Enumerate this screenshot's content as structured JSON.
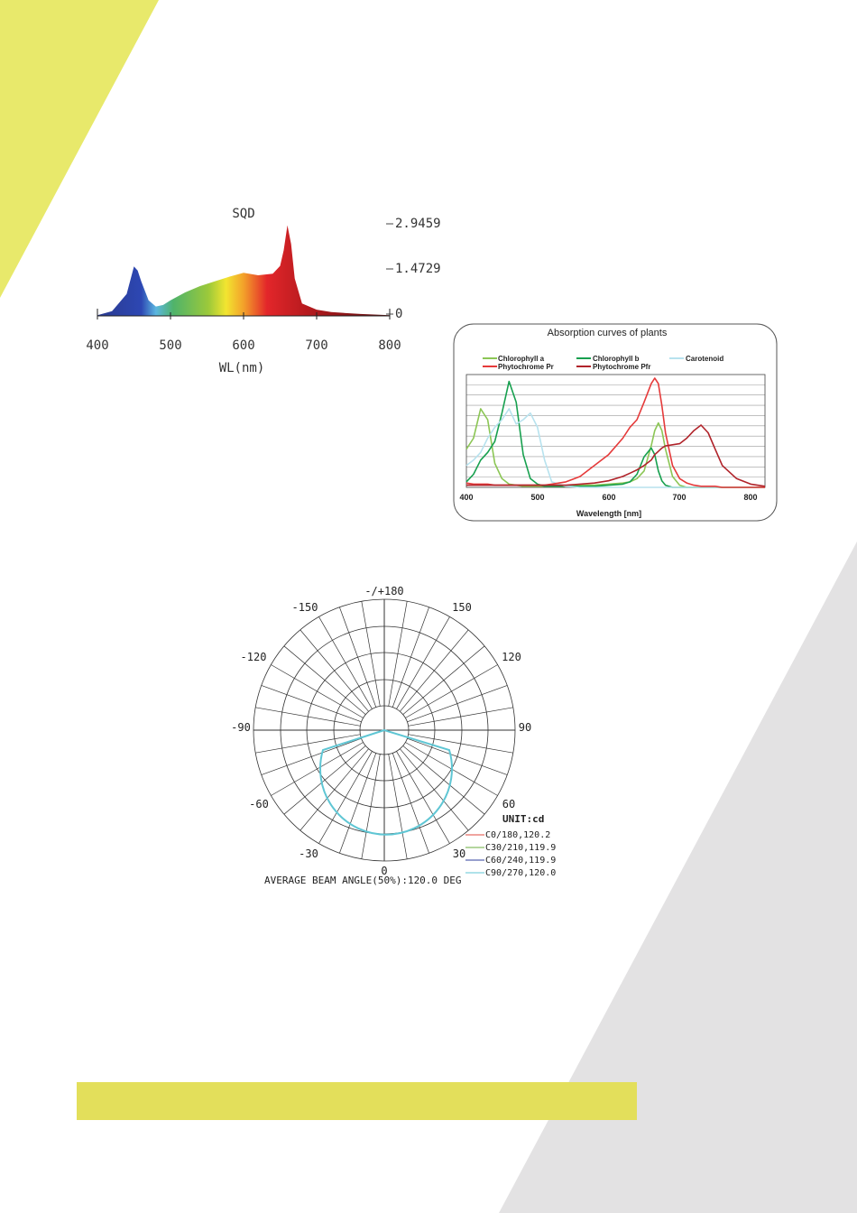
{
  "colors": {
    "accent_yellow": "#e8e96b",
    "bar_yellow": "#e3df5b",
    "gray_panel": "#e3e2e3"
  },
  "spectrum": {
    "title": "SQD",
    "right_ticks": [
      "2.9459",
      "1.4729",
      "0"
    ],
    "x_ticks": [
      "400",
      "500",
      "600",
      "700",
      "800"
    ],
    "xlabel": "WL(nm)"
  },
  "absorption": {
    "title": "Absorption curves of plants",
    "legend": {
      "chlorophyll_a": "Chlorophyll a",
      "chlorophyll_b": "Chlorophyll b",
      "carotenoid": "Carotenoid",
      "phytochrome_pr": "Phytochrome Pr",
      "phytochrome_pfr": "Phytochrome Pfr"
    },
    "x_ticks": [
      "400",
      "500",
      "600",
      "700",
      "800"
    ],
    "xlabel": "Wavelength [nm]"
  },
  "polar": {
    "labels": {
      "top": "-/+180",
      "m150": "-150",
      "p150": "150",
      "m120": "-120",
      "p120": "120",
      "m90": "-90",
      "p90": "90",
      "m60": "-60",
      "p60": "60",
      "m30": "-30",
      "p30": "30",
      "zero": "0"
    },
    "unit": "UNIT:cd",
    "legend": [
      "C0/180,120.2",
      "C30/210,119.9",
      "C60/240,119.9",
      "C90/270,120.0"
    ],
    "legend_colors": [
      "#e0483f",
      "#6aae3e",
      "#2f3f9e",
      "#5fc6d4"
    ],
    "beam_angle": "AVERAGE BEAM ANGLE(50%):120.0 DEG"
  },
  "chart_data": [
    {
      "type": "area",
      "title": "SQD",
      "xlabel": "WL(nm)",
      "xlim": [
        400,
        800
      ],
      "ylim": [
        0,
        2.9459
      ],
      "y_ticks": [
        0,
        1.4729,
        2.9459
      ],
      "x": [
        400,
        420,
        440,
        450,
        455,
        460,
        470,
        480,
        490,
        500,
        520,
        540,
        560,
        580,
        600,
        620,
        640,
        650,
        655,
        660,
        665,
        670,
        680,
        700,
        720,
        760,
        800
      ],
      "series": [
        {
          "values": [
            0.02,
            0.15,
            0.7,
            1.58,
            1.45,
            1.1,
            0.5,
            0.3,
            0.35,
            0.5,
            0.75,
            0.95,
            1.1,
            1.25,
            1.38,
            1.3,
            1.35,
            1.6,
            2.1,
            2.9,
            2.3,
            1.2,
            0.4,
            0.2,
            0.12,
            0.06,
            0.02
          ]
        }
      ]
    },
    {
      "type": "line",
      "title": "Absorption curves of plants",
      "xlabel": "Wavelength [nm]",
      "xlim": [
        400,
        820
      ],
      "x": [
        400,
        410,
        420,
        430,
        440,
        450,
        460,
        470,
        480,
        490,
        500,
        510,
        520,
        540,
        560,
        580,
        600,
        620,
        630,
        640,
        650,
        660,
        665,
        670,
        675,
        680,
        690,
        700,
        710,
        720,
        730,
        740,
        750,
        760,
        780,
        800,
        820
      ],
      "series": [
        {
          "name": "Chlorophyll a",
          "values": [
            0.35,
            0.45,
            0.72,
            0.62,
            0.22,
            0.08,
            0.03,
            0.02,
            0.01,
            0.01,
            0.01,
            0.01,
            0.01,
            0.01,
            0.02,
            0.02,
            0.03,
            0.04,
            0.05,
            0.08,
            0.15,
            0.38,
            0.52,
            0.59,
            0.52,
            0.35,
            0.1,
            0.02,
            0.0,
            0.0,
            0.0,
            0.0,
            0.0,
            0.0,
            0.0,
            0.0,
            0.0
          ]
        },
        {
          "name": "Chlorophyll b",
          "values": [
            0.05,
            0.12,
            0.25,
            0.32,
            0.42,
            0.68,
            0.97,
            0.78,
            0.3,
            0.08,
            0.03,
            0.01,
            0.01,
            0.01,
            0.01,
            0.01,
            0.02,
            0.03,
            0.05,
            0.12,
            0.28,
            0.36,
            0.3,
            0.15,
            0.06,
            0.02,
            0.0,
            0.0,
            0.0,
            0.0,
            0.0,
            0.0,
            0.0,
            0.0,
            0.0,
            0.0,
            0.0
          ]
        },
        {
          "name": "Carotenoid",
          "values": [
            0.2,
            0.25,
            0.32,
            0.45,
            0.55,
            0.62,
            0.72,
            0.58,
            0.62,
            0.68,
            0.55,
            0.25,
            0.05,
            0.01,
            0.0,
            0.0,
            0.0,
            0.0,
            0.0,
            0.0,
            0.0,
            0.0,
            0.0,
            0.0,
            0.0,
            0.0,
            0.0,
            0.0,
            0.0,
            0.0,
            0.0,
            0.0,
            0.0,
            0.0,
            0.0,
            0.0,
            0.0
          ]
        },
        {
          "name": "Phytochrome Pr",
          "values": [
            0.04,
            0.03,
            0.03,
            0.03,
            0.02,
            0.02,
            0.02,
            0.02,
            0.02,
            0.02,
            0.02,
            0.02,
            0.03,
            0.05,
            0.1,
            0.2,
            0.3,
            0.45,
            0.55,
            0.62,
            0.78,
            0.95,
            1.0,
            0.95,
            0.75,
            0.5,
            0.2,
            0.08,
            0.04,
            0.02,
            0.01,
            0.01,
            0.01,
            0.0,
            0.0,
            0.0,
            0.0
          ]
        },
        {
          "name": "Phytochrome Pfr",
          "values": [
            0.02,
            0.02,
            0.02,
            0.02,
            0.02,
            0.02,
            0.02,
            0.02,
            0.02,
            0.02,
            0.02,
            0.02,
            0.02,
            0.02,
            0.03,
            0.04,
            0.06,
            0.1,
            0.13,
            0.16,
            0.2,
            0.25,
            0.3,
            0.33,
            0.36,
            0.38,
            0.39,
            0.4,
            0.45,
            0.52,
            0.57,
            0.5,
            0.35,
            0.2,
            0.08,
            0.03,
            0.01
          ]
        }
      ]
    },
    {
      "type": "line",
      "title": "",
      "unit": "UNIT:cd",
      "angle_ticks": [
        -150,
        -120,
        -90,
        -60,
        -30,
        0,
        30,
        60,
        90,
        120,
        150,
        180
      ],
      "series": [
        {
          "name": "C0/180,120.2",
          "beam_angle_deg": 120.2
        },
        {
          "name": "C30/210,119.9",
          "beam_angle_deg": 119.9
        },
        {
          "name": "C60/240,119.9",
          "beam_angle_deg": 119.9
        },
        {
          "name": "C90/270,120.0",
          "beam_angle_deg": 120.0
        }
      ],
      "annotation": "AVERAGE BEAM ANGLE(50%):120.0 DEG"
    }
  ]
}
